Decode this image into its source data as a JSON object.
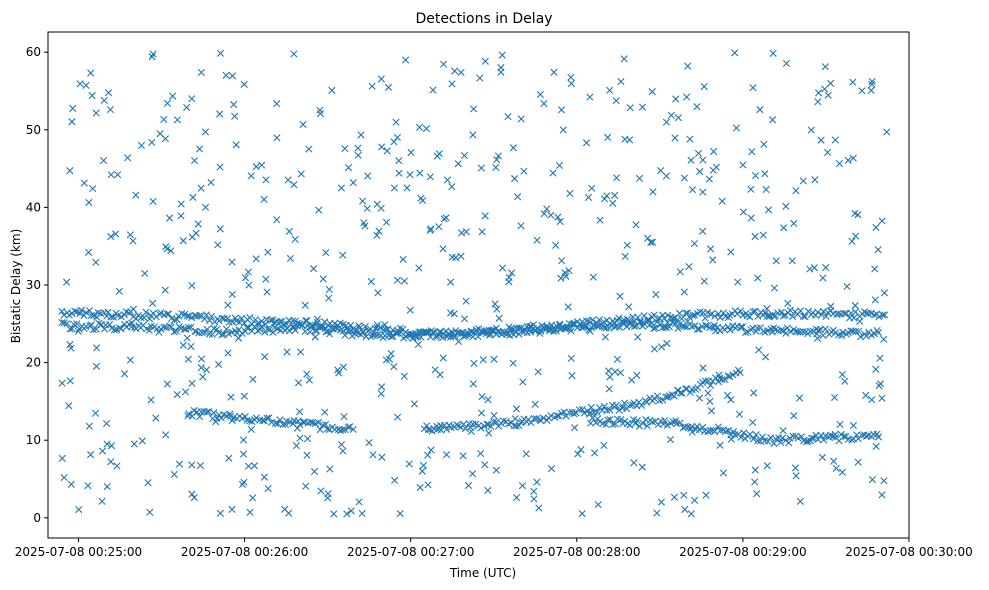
{
  "chart_data": {
    "type": "scatter",
    "title": "Detections in Delay",
    "xlabel": "Time (UTC)",
    "ylabel": "Bistatic Delay (km)",
    "marker": "x",
    "color": "#1f77b4",
    "grid": false,
    "legend": "none",
    "xlim": [
      "2025-07-08 00:24:49",
      "2025-07-08 00:30:00"
    ],
    "ylim": [
      -2.6,
      62.6
    ],
    "x_ticks": [
      "2025-07-08 00:25:00",
      "2025-07-08 00:26:00",
      "2025-07-08 00:27:00",
      "2025-07-08 00:28:00",
      "2025-07-08 00:29:00",
      "2025-07-08 00:30:00"
    ],
    "y_ticks": [
      0,
      10,
      20,
      30,
      40,
      50,
      60
    ],
    "data_start": "2025-07-08 00:24:54",
    "data_end": "2025-07-08 00:29:52",
    "tracks": [
      {
        "x": [
          "2025-07-08 00:24:54",
          "2025-07-08 00:25:10",
          "2025-07-08 00:25:30",
          "2025-07-08 00:25:50",
          "2025-07-08 00:26:10",
          "2025-07-08 00:26:30",
          "2025-07-08 00:26:50",
          "2025-07-08 00:27:10",
          "2025-07-08 00:27:30",
          "2025-07-08 00:27:50",
          "2025-07-08 00:28:10",
          "2025-07-08 00:28:30",
          "2025-07-08 00:28:50",
          "2025-07-08 00:29:10",
          "2025-07-08 00:29:30",
          "2025-07-08 00:29:52"
        ],
        "y": [
          26.5,
          26.2,
          26.0,
          25.7,
          25.2,
          24.8,
          24.2,
          23.8,
          24.0,
          24.6,
          25.2,
          25.8,
          26.2,
          26.4,
          26.3,
          26.0
        ]
      },
      {
        "x": [
          "2025-07-08 00:24:54",
          "2025-07-08 00:25:20",
          "2025-07-08 00:25:50",
          "2025-07-08 00:26:20",
          "2025-07-08 00:26:50",
          "2025-07-08 00:27:20",
          "2025-07-08 00:27:50",
          "2025-07-08 00:28:20",
          "2025-07-08 00:28:50",
          "2025-07-08 00:29:20",
          "2025-07-08 00:29:50"
        ],
        "y": [
          24.8,
          24.5,
          24.0,
          24.5,
          23.5,
          23.6,
          24.3,
          25.0,
          24.5,
          24.0,
          23.7
        ]
      },
      {
        "x": [
          "2025-07-08 00:25:40",
          "2025-07-08 00:26:00",
          "2025-07-08 00:26:20",
          "2025-07-08 00:26:40"
        ],
        "y": [
          13.5,
          12.8,
          12.1,
          11.3
        ]
      },
      {
        "x": [
          "2025-07-08 00:27:05",
          "2025-07-08 00:27:20",
          "2025-07-08 00:27:40",
          "2025-07-08 00:28:00",
          "2025-07-08 00:28:20",
          "2025-07-08 00:28:40",
          "2025-07-08 00:29:00"
        ],
        "y": [
          11.5,
          11.7,
          12.3,
          13.5,
          14.5,
          16.5,
          18.8
        ]
      },
      {
        "x": [
          "2025-07-08 00:28:05",
          "2025-07-08 00:28:40",
          "2025-07-08 00:29:10",
          "2025-07-08 00:29:50"
        ],
        "y": [
          12.5,
          12.0,
          10.0,
          10.5
        ]
      }
    ],
    "background_points": 650
  }
}
